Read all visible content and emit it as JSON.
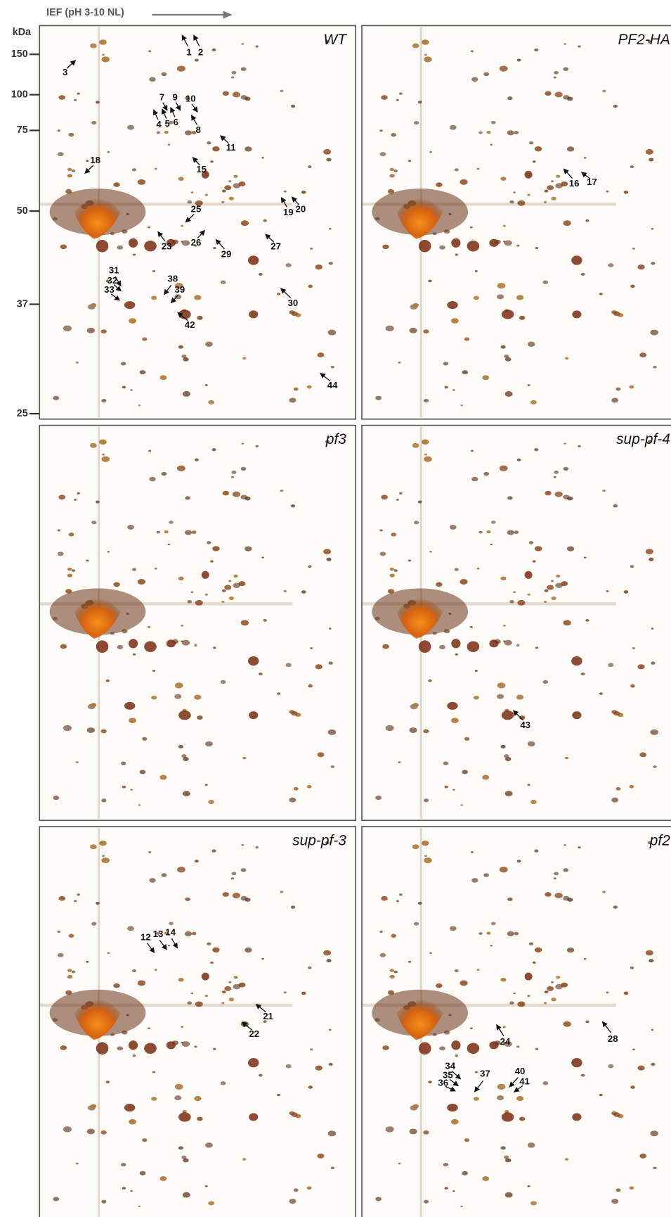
{
  "axis_title": "IEF (pH 3-10 NL)",
  "y_unit": "kDa",
  "y_markers": [
    "150",
    "100",
    "75",
    "50",
    "37",
    "25"
  ],
  "panels": [
    {
      "label": "WT",
      "annotations": [
        "1",
        "2",
        "3",
        "4",
        "5",
        "6",
        "7",
        "9",
        "10",
        "8",
        "11",
        "15",
        "18",
        "25",
        "19",
        "20",
        "23",
        "26",
        "29",
        "27",
        "31",
        "32",
        "33",
        "38",
        "39",
        "30",
        "42",
        "44"
      ]
    },
    {
      "label": "PF2-HA",
      "annotations": [
        "16",
        "17"
      ]
    },
    {
      "label": "pf3",
      "annotations": []
    },
    {
      "label": "sup-pf-4",
      "annotations": [
        "43"
      ]
    },
    {
      "label": "sup-pf-3",
      "annotations": [
        "12",
        "13",
        "14",
        "21",
        "22"
      ]
    },
    {
      "label": "pf2",
      "annotations": [
        "24",
        "28",
        "34",
        "35",
        "36",
        "37",
        "40",
        "41"
      ]
    }
  ]
}
